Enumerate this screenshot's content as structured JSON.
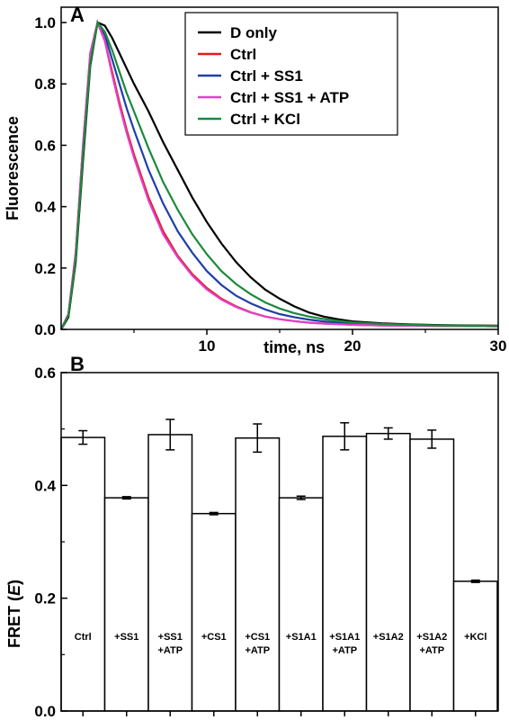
{
  "chart_data": [
    {
      "panel": "A",
      "type": "line",
      "xlabel": "time, ns",
      "ylabel": "Fluorescence",
      "xlim": [
        0,
        30
      ],
      "ylim": [
        0,
        1.05
      ],
      "xticks": [
        10,
        20,
        30
      ],
      "yticks": [
        0.0,
        0.2,
        0.4,
        0.6,
        0.8,
        1.0
      ],
      "legend_position": "top-right",
      "series": [
        {
          "name": "D only",
          "color": "#000000",
          "x": [
            0,
            0.5,
            1,
            1.5,
            2,
            2.5,
            3,
            3.5,
            4,
            4.5,
            5,
            6,
            7,
            8,
            9,
            10,
            11,
            12,
            13,
            14,
            15,
            16,
            17,
            18,
            19,
            20,
            22,
            24,
            26,
            28,
            30
          ],
          "y": [
            0,
            0.04,
            0.22,
            0.55,
            0.86,
            1.0,
            0.99,
            0.95,
            0.9,
            0.85,
            0.8,
            0.71,
            0.61,
            0.52,
            0.43,
            0.35,
            0.28,
            0.22,
            0.17,
            0.13,
            0.1,
            0.075,
            0.055,
            0.042,
            0.033,
            0.026,
            0.02,
            0.016,
            0.014,
            0.013,
            0.012
          ]
        },
        {
          "name": "Ctrl",
          "color": "#e41a1c",
          "x": [
            0,
            0.5,
            1,
            1.5,
            2,
            2.5,
            3,
            3.5,
            4,
            4.5,
            5,
            6,
            7,
            8,
            9,
            10,
            11,
            12,
            13,
            14,
            15,
            16,
            17,
            18,
            19,
            20,
            22,
            24,
            26,
            28,
            30
          ],
          "y": [
            0,
            0.05,
            0.25,
            0.6,
            0.9,
            1.0,
            0.94,
            0.84,
            0.74,
            0.65,
            0.57,
            0.43,
            0.32,
            0.24,
            0.18,
            0.135,
            0.1,
            0.075,
            0.056,
            0.042,
            0.033,
            0.027,
            0.022,
            0.019,
            0.017,
            0.015,
            0.013,
            0.012,
            0.011,
            0.011,
            0.01
          ]
        },
        {
          "name": "Ctrl + SS1",
          "color": "#1f3fa8",
          "x": [
            0,
            0.5,
            1,
            1.5,
            2,
            2.5,
            3,
            3.5,
            4,
            4.5,
            5,
            6,
            7,
            8,
            9,
            10,
            11,
            12,
            13,
            14,
            15,
            16,
            17,
            18,
            19,
            20,
            22,
            24,
            26,
            28,
            30
          ],
          "y": [
            0,
            0.05,
            0.24,
            0.58,
            0.88,
            1.0,
            0.96,
            0.88,
            0.8,
            0.72,
            0.65,
            0.52,
            0.41,
            0.32,
            0.25,
            0.19,
            0.145,
            0.11,
            0.085,
            0.065,
            0.05,
            0.04,
            0.032,
            0.026,
            0.022,
            0.019,
            0.015,
            0.013,
            0.012,
            0.011,
            0.011
          ]
        },
        {
          "name": "Ctrl + SS1 + ATP",
          "color": "#e040c8",
          "x": [
            0,
            0.5,
            1,
            1.5,
            2,
            2.5,
            3,
            3.5,
            4,
            4.5,
            5,
            6,
            7,
            8,
            9,
            10,
            11,
            12,
            13,
            14,
            15,
            16,
            17,
            18,
            19,
            20,
            22,
            24,
            26,
            28,
            30
          ],
          "y": [
            0,
            0.05,
            0.25,
            0.6,
            0.9,
            1.0,
            0.94,
            0.83,
            0.73,
            0.64,
            0.56,
            0.42,
            0.31,
            0.235,
            0.175,
            0.13,
            0.097,
            0.073,
            0.055,
            0.042,
            0.033,
            0.027,
            0.022,
            0.019,
            0.017,
            0.015,
            0.013,
            0.012,
            0.011,
            0.011,
            0.01
          ]
        },
        {
          "name": "Ctrl + KCl",
          "color": "#1a8a3a",
          "x": [
            0,
            0.5,
            1,
            1.5,
            2,
            2.5,
            3,
            3.5,
            4,
            4.5,
            5,
            6,
            7,
            8,
            9,
            10,
            11,
            12,
            13,
            14,
            15,
            16,
            17,
            18,
            19,
            20,
            22,
            24,
            26,
            28,
            30
          ],
          "y": [
            0,
            0.045,
            0.23,
            0.57,
            0.87,
            1.0,
            0.97,
            0.91,
            0.84,
            0.77,
            0.71,
            0.59,
            0.48,
            0.39,
            0.31,
            0.245,
            0.19,
            0.148,
            0.115,
            0.088,
            0.068,
            0.053,
            0.042,
            0.034,
            0.028,
            0.023,
            0.018,
            0.015,
            0.013,
            0.012,
            0.011
          ]
        }
      ]
    },
    {
      "panel": "B",
      "type": "bar",
      "ylabel_prefix": "FRET (",
      "ylabel_italic": "E",
      "ylabel_suffix": ")",
      "ylim": [
        0,
        0.6
      ],
      "yticks": [
        0.0,
        0.2,
        0.4,
        0.6
      ],
      "categories": [
        [
          "Ctrl"
        ],
        [
          "+SS1"
        ],
        [
          "+SS1",
          "+ATP"
        ],
        [
          "+CS1"
        ],
        [
          "+CS1",
          "+ATP"
        ],
        [
          "+S1A1"
        ],
        [
          "+S1A1",
          "+ATP"
        ],
        [
          "+S1A2"
        ],
        [
          "+S1A2",
          "+ATP"
        ],
        [
          "+KCl"
        ]
      ],
      "values": [
        0.485,
        0.378,
        0.49,
        0.35,
        0.484,
        0.378,
        0.487,
        0.492,
        0.482,
        0.23
      ],
      "errors": [
        0.012,
        0.002,
        0.027,
        0.002,
        0.025,
        0.003,
        0.024,
        0.01,
        0.016,
        0.002
      ]
    }
  ],
  "colors": {
    "axis": "#000000",
    "bar_fill": "#ffffff"
  }
}
